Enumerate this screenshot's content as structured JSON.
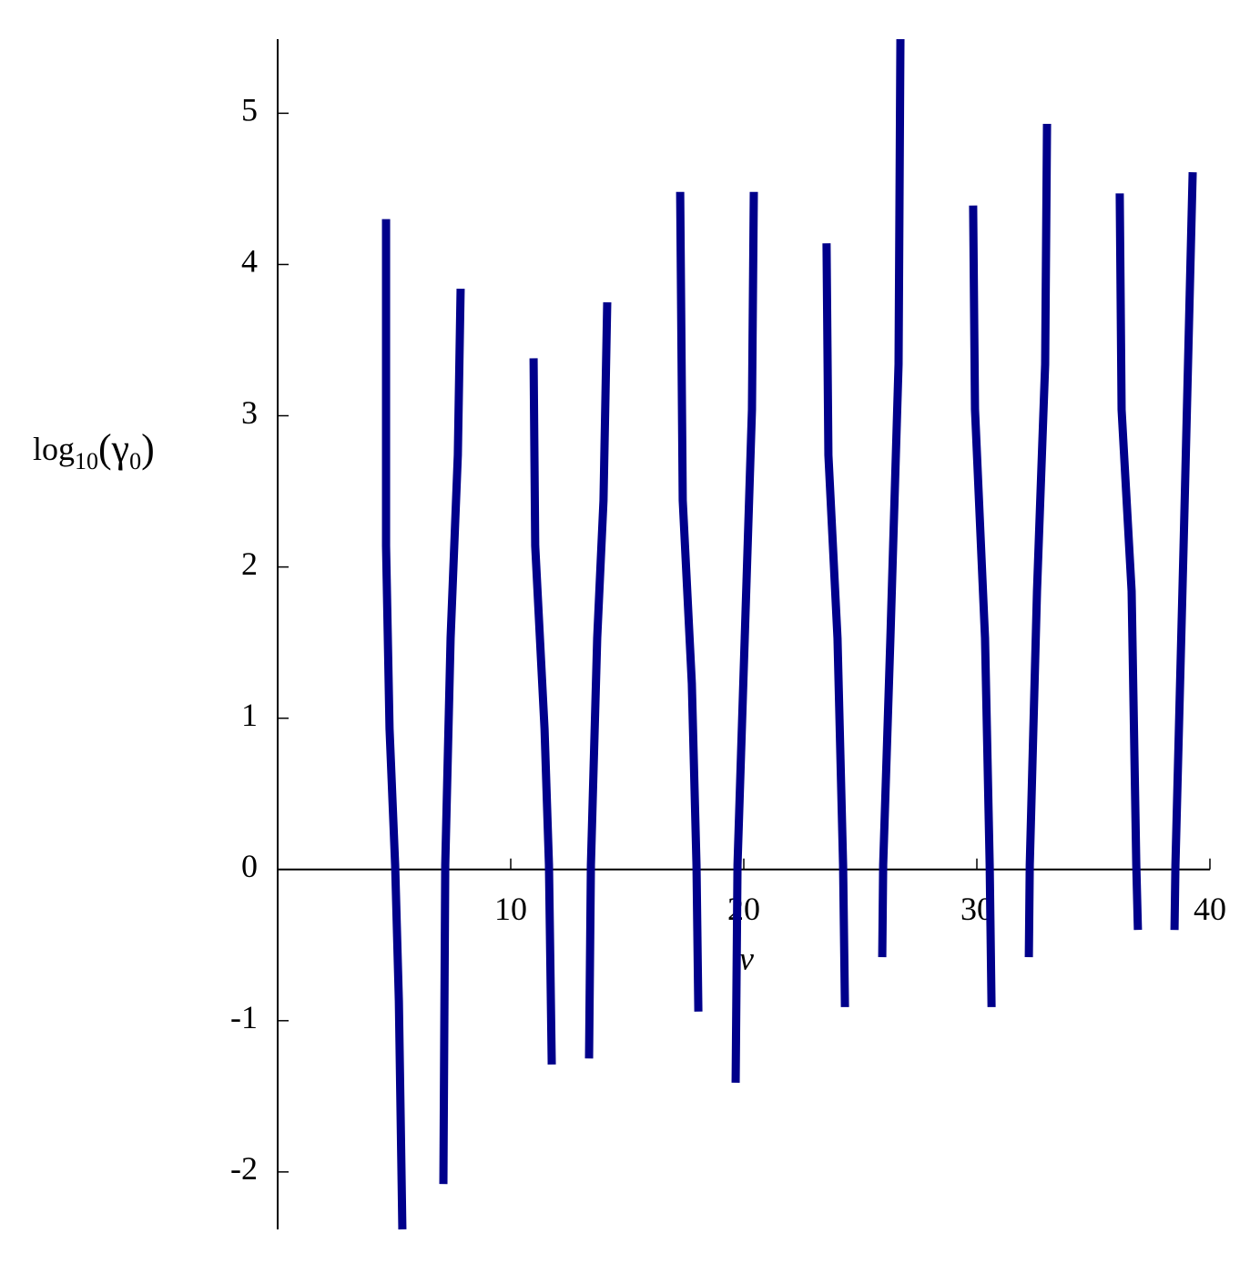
{
  "chart_data": {
    "type": "line",
    "y_label": [
      "log",
      "10",
      "(γ",
      "0",
      ")"
    ],
    "x_label": "v",
    "xlim": [
      0,
      40
    ],
    "ylim": [
      -2.38,
      5.49
    ],
    "xticks": [
      10,
      20,
      30,
      40
    ],
    "yticks": [
      -2,
      -1,
      0,
      1,
      2,
      3,
      4,
      5
    ],
    "series": [
      {
        "color": "#00008b",
        "x": [
          4.65,
          4.65,
          4.8,
          5.04,
          5.2,
          5.35,
          null,
          7.11,
          7.19,
          7.42,
          7.73,
          7.85,
          null,
          10.98,
          11.05,
          11.45,
          11.64,
          11.76,
          null,
          13.36,
          13.44,
          13.71,
          13.98,
          14.14,
          null,
          17.27,
          17.38,
          17.77,
          17.97,
          18.05,
          null,
          19.65,
          19.73,
          20.04,
          20.35,
          20.43,
          null,
          23.55,
          23.63,
          24.02,
          24.26,
          24.34,
          null,
          25.94,
          25.98,
          26.29,
          26.64,
          26.72,
          null,
          29.84,
          29.92,
          30.35,
          30.55,
          30.63,
          null,
          32.23,
          32.27,
          32.58,
          32.93,
          33.01,
          null,
          36.13,
          36.21,
          36.64,
          36.84,
          36.91,
          null,
          38.48,
          38.52,
          38.87,
          39.26
        ],
        "values": [
          4.3,
          2.14,
          0.93,
          0.03,
          -0.87,
          -2.38,
          null,
          -2.08,
          0.03,
          1.53,
          2.74,
          3.84,
          null,
          3.38,
          2.14,
          0.93,
          0.03,
          -1.29,
          null,
          -1.25,
          0.03,
          1.53,
          2.44,
          3.75,
          null,
          4.48,
          2.44,
          1.23,
          0.03,
          -0.94,
          null,
          -1.41,
          0.03,
          1.53,
          3.04,
          4.48,
          null,
          4.14,
          2.74,
          1.53,
          0.03,
          -0.91,
          null,
          -0.58,
          0.03,
          1.53,
          3.34,
          5.49,
          null,
          4.39,
          3.04,
          1.53,
          0.03,
          -0.91,
          null,
          -0.58,
          0.03,
          1.84,
          3.34,
          4.93,
          null,
          4.47,
          3.04,
          1.84,
          0.03,
          -0.4,
          null,
          -0.4,
          0.03,
          2.14,
          4.61
        ]
      }
    ]
  }
}
